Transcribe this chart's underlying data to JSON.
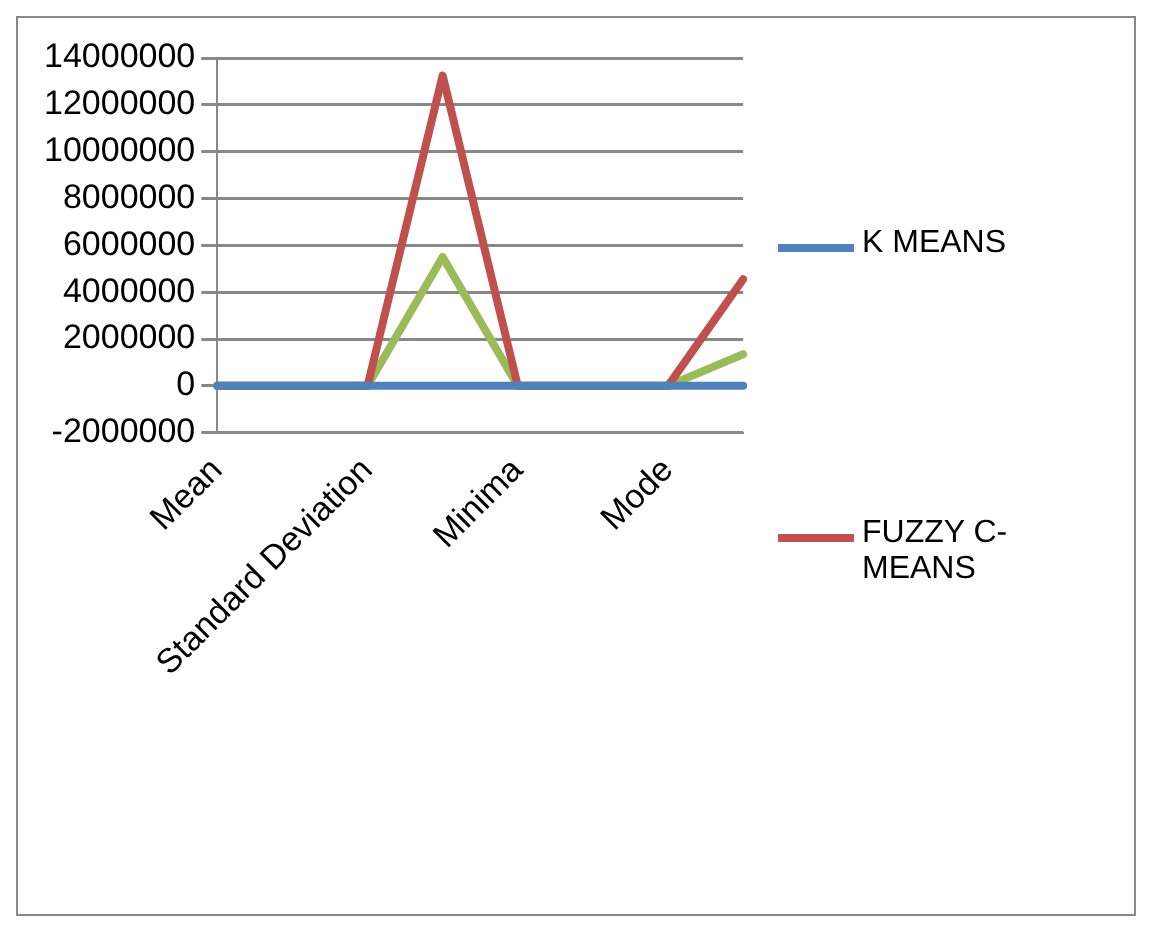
{
  "chart_data": {
    "type": "line",
    "categories": [
      "Mean",
      null,
      "Standard Deviation",
      null,
      "Minima",
      null,
      "Mode",
      null
    ],
    "series": [
      {
        "name": "K MEANS",
        "color": "#4f81bd",
        "values": [
          0,
          0,
          0,
          0,
          0,
          0,
          0,
          0
        ]
      },
      {
        "name": "FUZZY C-MEANS",
        "color": "#c0504d",
        "values": [
          0,
          0,
          0,
          13250000,
          0,
          0,
          0,
          4550000
        ]
      },
      {
        "color": "#9bbb59",
        "values": [
          0,
          0,
          0,
          5500000,
          0,
          0,
          0,
          1350000
        ]
      }
    ],
    "ylim": [
      -2000000,
      14000000
    ],
    "yticks": [
      -2000000,
      0,
      2000000,
      4000000,
      6000000,
      8000000,
      10000000,
      12000000,
      14000000
    ],
    "grid": "y",
    "legend": "right",
    "marker": "none",
    "line_style": "solid"
  }
}
